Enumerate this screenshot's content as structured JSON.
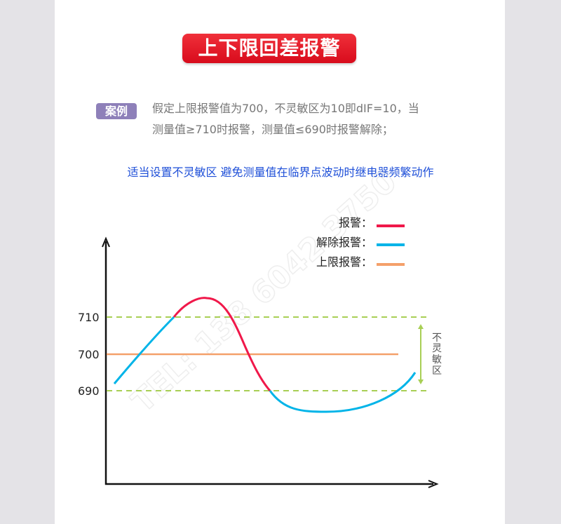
{
  "title": "上下限回差报警",
  "example": {
    "badge": "案例",
    "line1": "假定上限报警值为700，不灵敏区为10即dIF=10，当",
    "line2": "测量值≥710时报警，测量值≤690时报警解除；"
  },
  "tip": "适当设置不灵敏区 避免测量值在临界点波动时继电器频繁动作",
  "diagram": {
    "legend": [
      {
        "label": "报警：",
        "color": "#f0184a"
      },
      {
        "label": "解除报警：",
        "color": "#00b4e8"
      },
      {
        "label": "上限报警：",
        "color": "#f4a06a"
      }
    ],
    "levels": [
      "710",
      "700",
      "690"
    ],
    "deadband_label": [
      "不",
      "灵",
      "敏",
      "区"
    ],
    "guide_color": "#a8cf55",
    "watermark": "TEL: 138 6042 3750"
  }
}
